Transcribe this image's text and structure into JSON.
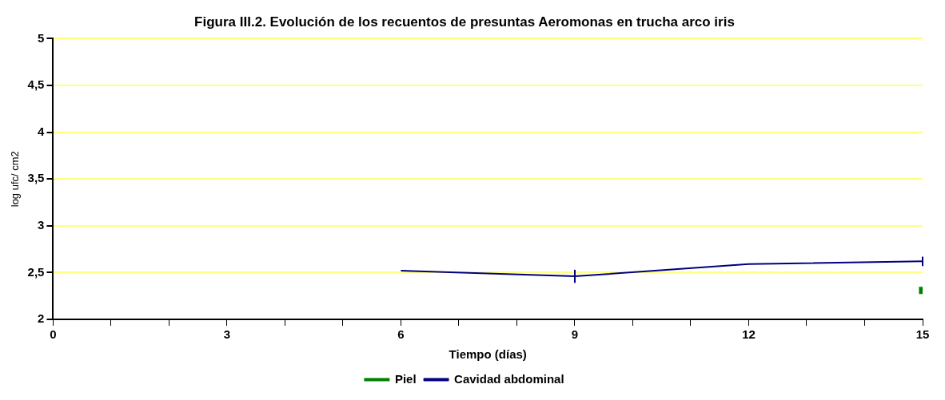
{
  "chart_data": {
    "type": "line",
    "title": "Figura III.2. Evolución de los recuentos de presuntas Aeromonas en trucha arco iris",
    "xlabel": "Tiempo (días)",
    "ylabel": "log ufc/ cm2",
    "xlim": [
      0,
      15
    ],
    "xticks": [
      0,
      {
        "value": 1,
        "label": null
      },
      {
        "value": 2,
        "label": null
      },
      3,
      {
        "value": 4,
        "label": null
      },
      {
        "value": 5,
        "label": null
      },
      6,
      {
        "value": 7,
        "label": null
      },
      {
        "value": 8,
        "label": null
      },
      9,
      {
        "value": 10,
        "label": null
      },
      {
        "value": 11,
        "label": null
      },
      12,
      {
        "value": 13,
        "label": null
      },
      {
        "value": 14,
        "label": null
      },
      15
    ],
    "ylim": [
      2,
      5
    ],
    "yticks": [
      2,
      {
        "value": 2.5,
        "label": "2,5"
      },
      3,
      {
        "value": 3.5,
        "label": "3,5"
      },
      4,
      {
        "value": 4.5,
        "label": "4,5"
      },
      5
    ],
    "grid": "y",
    "legend": "bottom",
    "series": [
      {
        "name": "Piel",
        "type": "scatter",
        "marker": "square",
        "color": "#008000",
        "x": [
          15
        ],
        "values": [
          2.31
        ]
      },
      {
        "name": "Cavidad abdominal",
        "type": "line",
        "marker": "none",
        "color": "#000080",
        "x": [
          6,
          9,
          12,
          15
        ],
        "values": [
          2.52,
          2.46,
          2.59,
          2.62
        ],
        "errors": [
          null,
          0.07,
          null,
          0.05
        ]
      }
    ]
  }
}
